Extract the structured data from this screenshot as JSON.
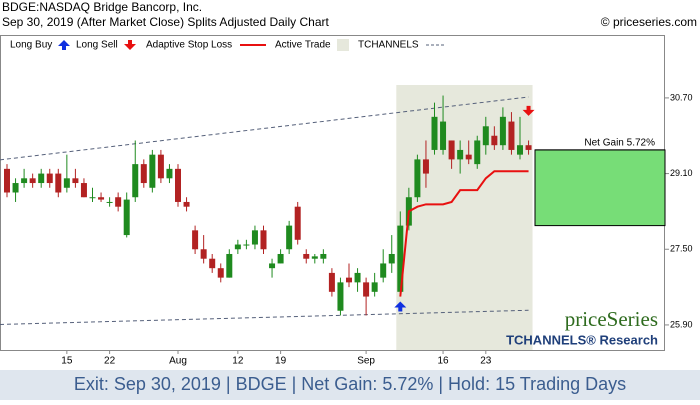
{
  "chart_data": {
    "type": "candlestick",
    "title": "BDGE:NASDAQ Bridge Bancorp, Inc.",
    "subtitle": "Sep 30, 2019 (After Market Close)  Splits Adjusted Daily Chart",
    "credit": "© priceseries.com",
    "watermark": "priceSeries",
    "watermark_sub": "TCHANNELS® Research",
    "footer": "Exit: Sep 30, 2019 | BDGE | Net Gain: 5.72% | Hold: 15 Trading Days",
    "categories": [
      null,
      null,
      null,
      null,
      null,
      null,
      null,
      "15",
      null,
      null,
      null,
      null,
      "22",
      null,
      null,
      null,
      null,
      null,
      null,
      null,
      "Aug",
      null,
      null,
      null,
      null,
      null,
      null,
      "12",
      null,
      null,
      null,
      null,
      "19",
      null,
      null,
      null,
      null,
      null,
      null,
      null,
      null,
      null,
      "Sep",
      null,
      null,
      null,
      null,
      null,
      null,
      null,
      null,
      "16",
      null,
      null,
      null,
      null,
      "23",
      null,
      null,
      null,
      null,
      null
    ],
    "open": [
      29.2,
      28.7,
      28.9,
      29.0,
      28.9,
      29.1,
      29.1,
      28.8,
      29.0,
      28.9,
      28.6,
      28.6,
      28.5,
      28.6,
      27.8,
      28.6,
      29.3,
      28.8,
      29.5,
      29.0,
      29.2,
      28.5,
      27.9,
      27.5,
      27.3,
      27.1,
      26.9,
      27.5,
      27.6,
      27.6,
      27.9,
      27.1,
      27.2,
      27.5,
      28.4,
      27.4,
      27.3,
      27.3,
      27.0,
      26.2,
      26.9,
      26.8,
      26.8,
      26.6,
      26.9,
      27.2,
      26.6,
      28.0,
      28.6,
      29.4,
      29.6,
      29.6,
      29.8,
      29.4,
      29.5,
      29.3,
      29.7,
      29.9,
      29.7,
      30.2,
      29.5,
      29.7
    ],
    "high": [
      29.3,
      29.0,
      29.2,
      29.1,
      29.2,
      29.2,
      29.2,
      29.5,
      29.2,
      29.0,
      28.8,
      28.7,
      28.6,
      28.7,
      28.7,
      29.8,
      29.4,
      29.6,
      29.6,
      29.3,
      29.3,
      28.6,
      28.0,
      27.8,
      27.4,
      27.2,
      27.5,
      27.7,
      27.7,
      28.0,
      28.0,
      27.3,
      27.5,
      28.1,
      28.5,
      27.5,
      27.4,
      27.5,
      27.1,
      26.9,
      27.2,
      27.1,
      26.9,
      27.0,
      27.5,
      27.8,
      28.3,
      28.8,
      29.5,
      29.8,
      30.6,
      30.75,
      29.8,
      29.8,
      29.8,
      29.9,
      30.3,
      30.1,
      30.5,
      30.4,
      30.3,
      29.8
    ],
    "low": [
      28.6,
      28.5,
      28.8,
      28.8,
      28.8,
      28.8,
      28.6,
      28.7,
      28.8,
      28.6,
      28.5,
      28.5,
      28.4,
      28.3,
      27.75,
      28.5,
      28.8,
      28.7,
      28.9,
      28.9,
      28.4,
      28.3,
      27.4,
      27.2,
      27.0,
      26.8,
      26.9,
      27.4,
      27.5,
      27.5,
      27.4,
      26.9,
      27.2,
      27.4,
      27.6,
      27.2,
      27.2,
      27.2,
      26.5,
      26.1,
      26.7,
      26.6,
      26.1,
      26.5,
      26.8,
      27.0,
      26.5,
      27.9,
      28.5,
      28.8,
      29.5,
      29.5,
      29.2,
      29.1,
      29.3,
      29.2,
      29.5,
      29.6,
      29.6,
      29.5,
      29.4,
      29.5
    ],
    "close": [
      28.7,
      28.9,
      29.0,
      28.9,
      29.1,
      28.9,
      28.7,
      29.0,
      28.9,
      28.6,
      28.6,
      28.55,
      28.5,
      28.4,
      28.55,
      29.3,
      28.9,
      29.5,
      29.0,
      29.2,
      28.5,
      28.4,
      27.5,
      27.3,
      27.1,
      26.9,
      27.4,
      27.6,
      27.6,
      27.9,
      27.5,
      27.2,
      27.4,
      28.0,
      27.7,
      27.3,
      27.35,
      27.4,
      26.6,
      26.8,
      26.8,
      27.0,
      26.5,
      26.8,
      27.2,
      27.4,
      28.0,
      28.6,
      29.4,
      29.1,
      30.3,
      30.2,
      29.4,
      29.6,
      29.4,
      29.8,
      30.1,
      29.7,
      30.3,
      29.6,
      29.7,
      29.6
    ],
    "up_color": "#1f8a1f",
    "down_color": "#b22222",
    "ylim": [
      25.37,
      32.03
    ],
    "yticks": [
      {
        "value": 25.9,
        "label": "25.90"
      },
      {
        "value": 27.5,
        "label": "27.50"
      },
      {
        "value": 29.1,
        "label": "29.10"
      },
      {
        "value": 30.7,
        "label": "30.70"
      }
    ],
    "stop": {
      "name": "Adaptive Stop Loss",
      "color": "#e81010",
      "values": [
        null,
        null,
        null,
        null,
        null,
        null,
        null,
        null,
        null,
        null,
        null,
        null,
        null,
        null,
        null,
        null,
        null,
        null,
        null,
        null,
        null,
        null,
        null,
        null,
        null,
        null,
        null,
        null,
        null,
        null,
        null,
        null,
        null,
        null,
        null,
        null,
        null,
        null,
        null,
        null,
        null,
        null,
        null,
        null,
        null,
        null,
        26.5,
        28.3,
        28.4,
        28.45,
        28.45,
        28.45,
        28.5,
        28.75,
        28.75,
        28.75,
        29.0,
        29.15,
        29.15,
        29.15,
        29.15,
        29.15
      ]
    },
    "long_buy": {
      "name": "Long Buy",
      "color": "#1030e0"
    },
    "long_sell": {
      "name": "Long Sell",
      "color": "#e81010"
    },
    "active_trade": {
      "name": "Active Trade",
      "color": "#e6e8dc"
    },
    "channel": {
      "name": "TCHANNELS",
      "color": "#55607a",
      "upper": [
        29.39,
        30.72
      ],
      "lower": [
        25.91,
        26.21
      ]
    },
    "trade": {
      "entry_price": 28.0,
      "exit_price": 29.6,
      "label": "Net Gain 5.72%",
      "color": "#77dd77"
    }
  }
}
